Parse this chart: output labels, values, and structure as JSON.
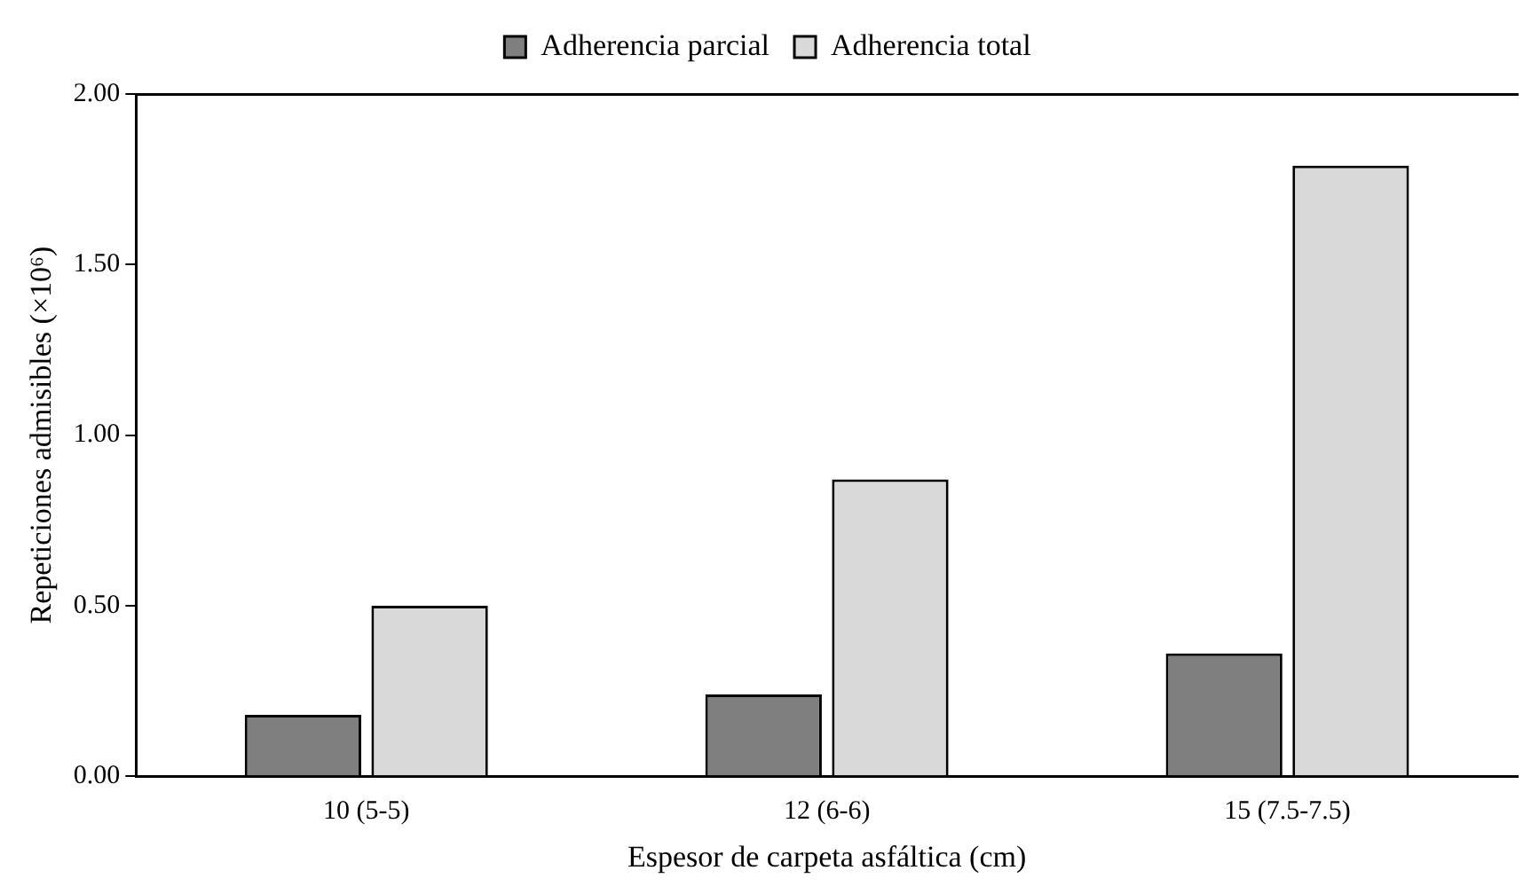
{
  "chart_data": {
    "type": "bar",
    "xlabel": "Espesor de carpeta asfáltica (cm)",
    "ylabel": "Repeticiones admisibles (×10⁶)",
    "categories": [
      "10 (5-5)",
      "12 (6-6)",
      "15 (7.5-7.5)"
    ],
    "series": [
      {
        "name": "Adherencia parcial",
        "color": "#7f7f7f",
        "values": [
          0.18,
          0.24,
          0.36
        ]
      },
      {
        "name": "Adherencia total",
        "color": "#d9d9d9",
        "values": [
          0.5,
          0.87,
          1.79
        ]
      }
    ],
    "ylim": [
      0,
      2
    ],
    "yticks": [
      {
        "value": 0,
        "label": "0.00"
      },
      {
        "value": 0.5,
        "label": "0.50"
      },
      {
        "value": 1,
        "label": "1.00"
      },
      {
        "value": 1.5,
        "label": "1.50"
      },
      {
        "value": 2,
        "label": "2.00"
      }
    ],
    "grid": false,
    "legend": "top"
  }
}
